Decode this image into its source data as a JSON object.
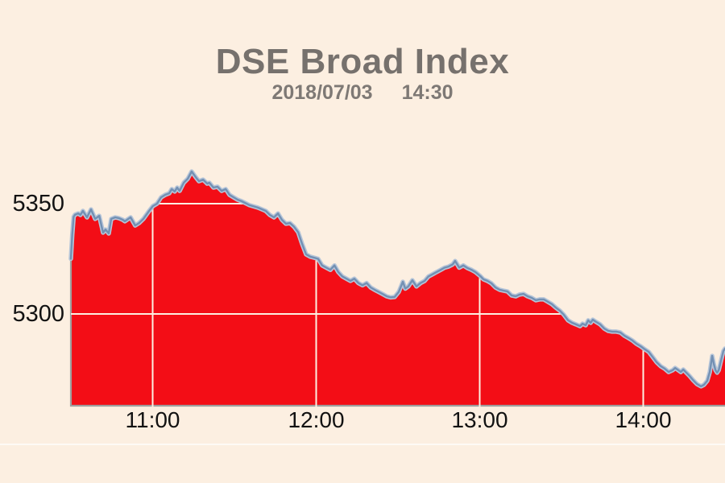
{
  "chart_data": {
    "type": "area",
    "title": "DSE Broad Index",
    "subtitle": {
      "date": "2018/07/03",
      "time": "14:30"
    },
    "x_axis": {
      "tick_labels": [
        "11:00",
        "12:00",
        "13:00",
        "14:00"
      ],
      "tick_minutes": [
        30,
        90,
        150,
        210
      ],
      "range_minutes": [
        0,
        240
      ]
    },
    "y_axis": {
      "tick_values": [
        5350,
        5300
      ],
      "baseline_value": 5258.5
    },
    "legend": null,
    "grid": "on",
    "series": [
      {
        "name": "dse-broad-index-value",
        "points": [
          [
            0,
            5325
          ],
          [
            0.5,
            5336
          ],
          [
            1,
            5344
          ],
          [
            1.5,
            5345
          ],
          [
            2.7,
            5345.6
          ],
          [
            3.5,
            5344.9
          ],
          [
            4.4,
            5346.7
          ],
          [
            5.9,
            5343.8
          ],
          [
            7.4,
            5347.4
          ],
          [
            8.9,
            5343.1
          ],
          [
            10.4,
            5344.5
          ],
          [
            11.8,
            5336.9
          ],
          [
            12.7,
            5338.3
          ],
          [
            13.9,
            5336.5
          ],
          [
            14.8,
            5343.1
          ],
          [
            16.3,
            5343.8
          ],
          [
            17.7,
            5343.4
          ],
          [
            19,
            5342.7
          ],
          [
            19.8,
            5342
          ],
          [
            21.9,
            5343.8
          ],
          [
            23.6,
            5340.1
          ],
          [
            25,
            5341.2
          ],
          [
            26.6,
            5343.1
          ],
          [
            28.7,
            5346.7
          ],
          [
            30.1,
            5348.9
          ],
          [
            31.6,
            5350
          ],
          [
            33.1,
            5352.9
          ],
          [
            34.6,
            5354
          ],
          [
            36.1,
            5354.7
          ],
          [
            37,
            5356.6
          ],
          [
            38.1,
            5355.5
          ],
          [
            39,
            5357.3
          ],
          [
            39.9,
            5355.8
          ],
          [
            41.4,
            5359.5
          ],
          [
            42.9,
            5361.3
          ],
          [
            44.3,
            5364.6
          ],
          [
            45.8,
            5362
          ],
          [
            47,
            5360.2
          ],
          [
            48.5,
            5360.9
          ],
          [
            50,
            5359.1
          ],
          [
            50.8,
            5359.5
          ],
          [
            52.3,
            5357.3
          ],
          [
            53.8,
            5357.7
          ],
          [
            55.3,
            5355.8
          ],
          [
            56.8,
            5356.6
          ],
          [
            58.2,
            5354
          ],
          [
            59.7,
            5352.9
          ],
          [
            61.2,
            5351.8
          ],
          [
            62.7,
            5351.1
          ],
          [
            65.6,
            5349.3
          ],
          [
            68.6,
            5348.2
          ],
          [
            71.5,
            5346.7
          ],
          [
            73,
            5344.9
          ],
          [
            74.5,
            5343.8
          ],
          [
            76,
            5345.6
          ],
          [
            77.4,
            5342.7
          ],
          [
            78.9,
            5340.9
          ],
          [
            80.4,
            5341.2
          ],
          [
            81.9,
            5339.5
          ],
          [
            83.4,
            5337
          ],
          [
            84.8,
            5331.9
          ],
          [
            86.3,
            5327
          ],
          [
            87.8,
            5326
          ],
          [
            89.3,
            5325.5
          ],
          [
            90.7,
            5325
          ],
          [
            92.2,
            5322
          ],
          [
            93.7,
            5321
          ],
          [
            95.2,
            5320
          ],
          [
            96.7,
            5322
          ],
          [
            98.1,
            5319
          ],
          [
            99.6,
            5317
          ],
          [
            101.1,
            5316
          ],
          [
            102.6,
            5315
          ],
          [
            104,
            5316
          ],
          [
            105.5,
            5314
          ],
          [
            107,
            5313
          ],
          [
            108.5,
            5314
          ],
          [
            110,
            5312
          ],
          [
            111.4,
            5311
          ],
          [
            112.9,
            5310
          ],
          [
            114.4,
            5309
          ],
          [
            115.9,
            5308
          ],
          [
            117.3,
            5307.5
          ],
          [
            118.8,
            5307.7
          ],
          [
            120.3,
            5310
          ],
          [
            121.8,
            5314.6
          ],
          [
            122.7,
            5311.5
          ],
          [
            123.8,
            5312.5
          ],
          [
            125.3,
            5315.3
          ],
          [
            126.8,
            5312.5
          ],
          [
            128.3,
            5314
          ],
          [
            129.8,
            5315
          ],
          [
            131.2,
            5317
          ],
          [
            132.7,
            5318
          ],
          [
            134.2,
            5319
          ],
          [
            135.7,
            5320
          ],
          [
            137.1,
            5321
          ],
          [
            138.6,
            5321.5
          ],
          [
            140.1,
            5322.5
          ],
          [
            141,
            5324
          ],
          [
            142.5,
            5321
          ],
          [
            144,
            5322
          ],
          [
            145.5,
            5320.8
          ],
          [
            147,
            5320
          ],
          [
            148.4,
            5319
          ],
          [
            150.2,
            5317.2
          ],
          [
            151.4,
            5315.7
          ],
          [
            152.8,
            5315
          ],
          [
            154.3,
            5313.9
          ],
          [
            155.8,
            5312
          ],
          [
            157.3,
            5311
          ],
          [
            158.7,
            5310.6
          ],
          [
            160.2,
            5310.2
          ],
          [
            161.7,
            5308.4
          ],
          [
            163.2,
            5308
          ],
          [
            164.6,
            5308.8
          ],
          [
            166.1,
            5309.1
          ],
          [
            167.6,
            5308
          ],
          [
            169.1,
            5307.3
          ],
          [
            170.6,
            5306.2
          ],
          [
            172,
            5306.6
          ],
          [
            173.5,
            5306.6
          ],
          [
            175,
            5305.5
          ],
          [
            176.5,
            5304.4
          ],
          [
            177.9,
            5302.9
          ],
          [
            179.4,
            5301.5
          ],
          [
            180.9,
            5299.6
          ],
          [
            182.4,
            5297.1
          ],
          [
            183.9,
            5296
          ],
          [
            185.3,
            5295.3
          ],
          [
            186.8,
            5294.5
          ],
          [
            187.7,
            5295.6
          ],
          [
            188.9,
            5294.9
          ],
          [
            189.8,
            5297.1
          ],
          [
            190.7,
            5296
          ],
          [
            191.5,
            5297.4
          ],
          [
            192.7,
            5296.4
          ],
          [
            194.2,
            5295.3
          ],
          [
            195.7,
            5293.4
          ],
          [
            197.2,
            5292.3
          ],
          [
            198.6,
            5292
          ],
          [
            200.1,
            5292
          ],
          [
            201.6,
            5291.6
          ],
          [
            203.1,
            5290.1
          ],
          [
            204.6,
            5289.1
          ],
          [
            206,
            5288
          ],
          [
            207.5,
            5286.5
          ],
          [
            209,
            5285.4
          ],
          [
            210.2,
            5284.3
          ],
          [
            212,
            5282.8
          ],
          [
            213.4,
            5280.6
          ],
          [
            214.9,
            5278.1
          ],
          [
            216.4,
            5276.3
          ],
          [
            217.9,
            5275.2
          ],
          [
            219.3,
            5273.7
          ],
          [
            220.8,
            5274.5
          ],
          [
            221.7,
            5275.5
          ],
          [
            222.9,
            5274.5
          ],
          [
            223.8,
            5273.7
          ],
          [
            224.7,
            5274.8
          ],
          [
            225.8,
            5273.4
          ],
          [
            227,
            5271.9
          ],
          [
            228.2,
            5270.1
          ],
          [
            229.7,
            5268.2
          ],
          [
            231.2,
            5267.2
          ],
          [
            232.3,
            5267.9
          ],
          [
            233.5,
            5269.7
          ],
          [
            234.4,
            5273.7
          ],
          [
            235.3,
            5281
          ],
          [
            235.9,
            5277.4
          ],
          [
            236.5,
            5274.5
          ],
          [
            237.1,
            5273.4
          ],
          [
            237.7,
            5274.5
          ],
          [
            238.6,
            5279.2
          ],
          [
            239.4,
            5283.2
          ],
          [
            240,
            5284.3
          ]
        ]
      }
    ],
    "colors": {
      "background": "#fcefe1",
      "fill": "#f30d16",
      "line": "#7390b3",
      "line_halo": "#b7c6d9",
      "grid": "#fcefe1",
      "axis": "#9e9e9e",
      "title_text": "#76716d",
      "subtitle_text": "#7e7975",
      "tick_text": "#121212"
    }
  }
}
